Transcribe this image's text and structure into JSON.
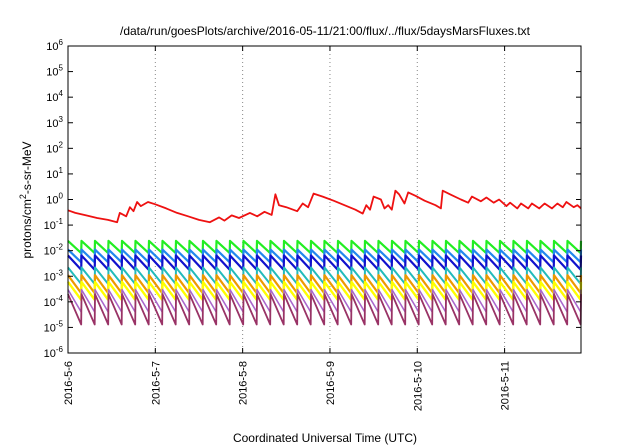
{
  "chart_data": {
    "type": "line",
    "title": "/data/run/goesPlots/archive/2016-05-11/21:00/flux/../flux/5daysMarsFluxes.txt",
    "xlabel": "Coordinated Universal Time (UTC)",
    "ylabel": {
      "base": "protons/cm",
      "sup": "2",
      "rest": "-s-sr-MeV"
    },
    "y_scale": "log",
    "ylim": [
      1e-06,
      1000000.0
    ],
    "y_ticks": [
      {
        "base": "10",
        "exp": "-6"
      },
      {
        "base": "10",
        "exp": "-5"
      },
      {
        "base": "10",
        "exp": "-4"
      },
      {
        "base": "10",
        "exp": "-3"
      },
      {
        "base": "10",
        "exp": "-2"
      },
      {
        "base": "10",
        "exp": "-1"
      },
      {
        "base": "10",
        "exp": "0"
      },
      {
        "base": "10",
        "exp": "1"
      },
      {
        "base": "10",
        "exp": "2"
      },
      {
        "base": "10",
        "exp": "3"
      },
      {
        "base": "10",
        "exp": "4"
      },
      {
        "base": "10",
        "exp": "5"
      },
      {
        "base": "10",
        "exp": "6"
      }
    ],
    "xlim": [
      "2016-05-06",
      "2016-05-11T21:00"
    ],
    "x_ticks": [
      "2016-5-6",
      "2016-5-7",
      "2016-5-8",
      "2016-5-9",
      "2016-5-10",
      "2016-5-11"
    ],
    "grid": "vertical dotted",
    "series": [
      {
        "color": "#ee1111",
        "lw": 1.8,
        "values": [
          [
            "2016-05-06T00:00",
            0.38
          ],
          [
            "2016-05-06T02:00",
            0.3
          ],
          [
            "2016-05-06T05:00",
            0.24
          ],
          [
            "2016-05-06T08:00",
            0.19
          ],
          [
            "2016-05-06T11:00",
            0.16
          ],
          [
            "2016-05-06T13:30",
            0.13
          ],
          [
            "2016-05-06T14:15",
            0.3
          ],
          [
            "2016-05-06T16:00",
            0.22
          ],
          [
            "2016-05-06T17:00",
            0.5
          ],
          [
            "2016-05-06T18:00",
            0.35
          ],
          [
            "2016-05-06T19:00",
            0.8
          ],
          [
            "2016-05-06T20:00",
            0.55
          ],
          [
            "2016-05-06T22:00",
            0.8
          ],
          [
            "2016-05-07T00:00",
            0.65
          ],
          [
            "2016-05-07T03:00",
            0.45
          ],
          [
            "2016-05-07T06:00",
            0.3
          ],
          [
            "2016-05-07T09:00",
            0.22
          ],
          [
            "2016-05-07T12:00",
            0.16
          ],
          [
            "2016-05-07T15:00",
            0.13
          ],
          [
            "2016-05-07T17:30",
            0.2
          ],
          [
            "2016-05-07T19:00",
            0.15
          ],
          [
            "2016-05-07T21:00",
            0.24
          ],
          [
            "2016-05-07T23:00",
            0.19
          ],
          [
            "2016-05-08T02:00",
            0.3
          ],
          [
            "2016-05-08T04:00",
            0.22
          ],
          [
            "2016-05-08T06:00",
            0.33
          ],
          [
            "2016-05-08T08:00",
            0.25
          ],
          [
            "2016-05-08T09:00",
            1.6
          ],
          [
            "2016-05-08T10:00",
            0.6
          ],
          [
            "2016-05-08T12:00",
            0.5
          ],
          [
            "2016-05-08T15:00",
            0.35
          ],
          [
            "2016-05-08T16:30",
            0.7
          ],
          [
            "2016-05-08T18:00",
            0.5
          ],
          [
            "2016-05-08T19:30",
            1.7
          ],
          [
            "2016-05-08T22:00",
            1.3
          ],
          [
            "2016-05-09T01:00",
            0.9
          ],
          [
            "2016-05-09T04:00",
            0.6
          ],
          [
            "2016-05-09T07:00",
            0.4
          ],
          [
            "2016-05-09T09:00",
            0.28
          ],
          [
            "2016-05-09T10:00",
            0.6
          ],
          [
            "2016-05-09T11:00",
            0.4
          ],
          [
            "2016-05-09T12:00",
            1.3
          ],
          [
            "2016-05-09T14:00",
            1.0
          ],
          [
            "2016-05-09T15:00",
            0.45
          ],
          [
            "2016-05-09T16:00",
            0.6
          ],
          [
            "2016-05-09T17:00",
            0.4
          ],
          [
            "2016-05-09T18:00",
            2.2
          ],
          [
            "2016-05-09T19:00",
            1.6
          ],
          [
            "2016-05-09T20:30",
            0.7
          ],
          [
            "2016-05-09T21:30",
            1.9
          ],
          [
            "2016-05-09T23:30",
            1.4
          ],
          [
            "2016-05-10T02:00",
            0.9
          ],
          [
            "2016-05-10T05:00",
            0.6
          ],
          [
            "2016-05-10T06:30",
            0.45
          ],
          [
            "2016-05-10T07:00",
            2.2
          ],
          [
            "2016-05-10T09:00",
            1.6
          ],
          [
            "2016-05-10T12:00",
            1.0
          ],
          [
            "2016-05-10T14:00",
            0.75
          ],
          [
            "2016-05-10T15:00",
            1.3
          ],
          [
            "2016-05-10T17:30",
            0.85
          ],
          [
            "2016-05-10T19:00",
            1.2
          ],
          [
            "2016-05-10T21:00",
            0.75
          ],
          [
            "2016-05-10T22:30",
            1.0
          ],
          [
            "2016-05-11T00:30",
            0.55
          ],
          [
            "2016-05-11T01:30",
            0.75
          ],
          [
            "2016-05-11T03:30",
            0.45
          ],
          [
            "2016-05-11T04:30",
            0.7
          ],
          [
            "2016-05-11T06:30",
            0.45
          ],
          [
            "2016-05-11T07:30",
            0.7
          ],
          [
            "2016-05-11T09:30",
            0.45
          ],
          [
            "2016-05-11T11:00",
            0.7
          ],
          [
            "2016-05-11T13:00",
            0.45
          ],
          [
            "2016-05-11T14:30",
            0.7
          ],
          [
            "2016-05-11T16:00",
            0.5
          ],
          [
            "2016-05-11T17:00",
            0.8
          ],
          [
            "2016-05-11T19:00",
            0.5
          ],
          [
            "2016-05-11T20:00",
            0.6
          ],
          [
            "2016-05-11T21:00",
            0.45
          ]
        ]
      },
      {
        "color": "#22ee22",
        "lw": 2.2,
        "sawtooth": {
          "high": 0.024,
          "low": 0.008
        }
      },
      {
        "color": "#2288ee",
        "lw": 2.2,
        "sawtooth": {
          "high": 0.011,
          "low": 0.0035
        }
      },
      {
        "color": "#1111cc",
        "lw": 2.2,
        "sawtooth": {
          "high": 0.0065,
          "low": 0.0018
        }
      },
      {
        "color": "#22bbbb",
        "lw": 2.0,
        "sawtooth": {
          "high": 0.0022,
          "low": 0.0005
        }
      },
      {
        "color": "#ee9900",
        "lw": 2.2,
        "sawtooth": {
          "high": 0.0011,
          "low": 0.00022
        }
      },
      {
        "color": "#ffff00",
        "lw": 2.4,
        "sawtooth": {
          "high": 0.0006,
          "low": 0.00012
        }
      },
      {
        "color": "#aa66cc",
        "lw": 1.6,
        "sawtooth": {
          "high": 0.0003,
          "low": 4e-05
        }
      },
      {
        "color": "#993366",
        "lw": 1.8,
        "sawtooth": {
          "high": 0.0002,
          "low": 1.3e-05
        }
      }
    ],
    "sawtooth_cycles": 38
  }
}
